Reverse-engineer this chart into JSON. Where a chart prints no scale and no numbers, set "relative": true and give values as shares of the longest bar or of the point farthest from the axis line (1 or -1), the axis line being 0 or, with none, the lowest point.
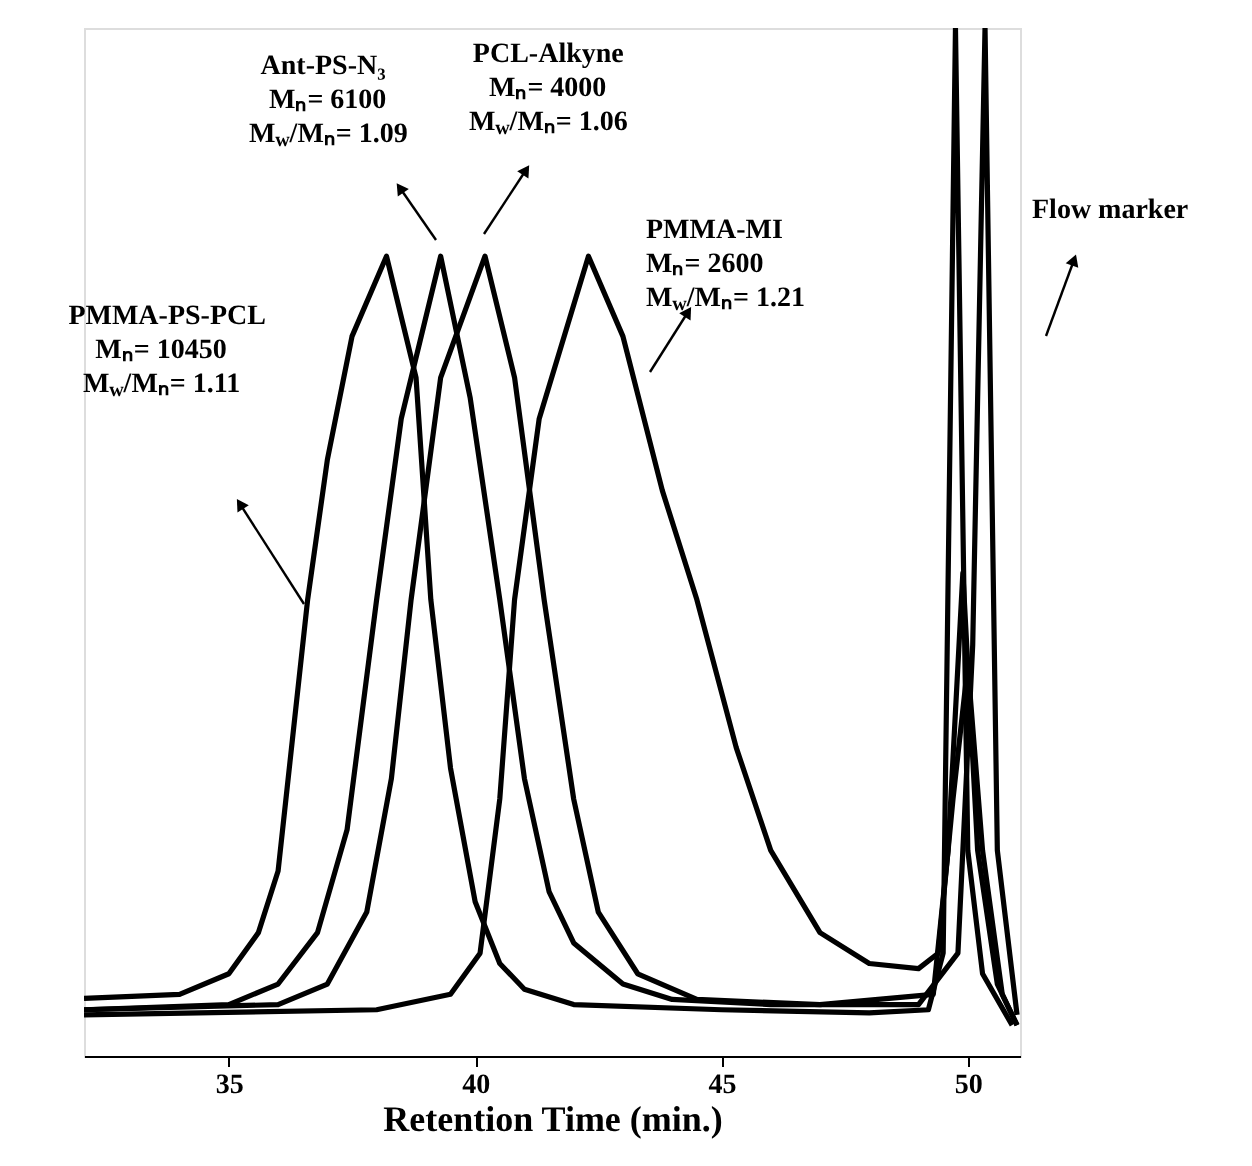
{
  "chart_data": {
    "type": "line",
    "relative": true,
    "xlabel": "Retention Time (min.)",
    "xlim": [
      32.06,
      51.06
    ],
    "xticks": [
      35,
      40,
      45,
      50
    ],
    "grid": false,
    "marker": "none",
    "line_style": "solid",
    "series": [
      {
        "color": "#000000",
        "x": [
          32.06,
          34.0,
          35.0,
          35.6,
          36.0,
          36.6,
          37.0,
          37.5,
          38.2,
          38.8,
          39.1,
          39.5,
          40.0,
          40.5,
          41.0,
          42.0,
          45.0,
          48.0,
          49.2,
          49.5,
          49.75,
          50.0,
          50.3,
          50.9
        ],
        "values": [
          0.056,
          0.06,
          0.08,
          0.12,
          0.18,
          0.444,
          0.58,
          0.7,
          0.778,
          0.66,
          0.444,
          0.28,
          0.15,
          0.09,
          0.065,
          0.05,
          0.045,
          0.042,
          0.045,
          0.1,
          1.0,
          0.2,
          0.08,
          0.03
        ]
      },
      {
        "color": "#000000",
        "x": [
          32.06,
          35.0,
          36.0,
          36.8,
          37.4,
          38.0,
          38.5,
          39.3,
          39.9,
          40.5,
          41.0,
          41.5,
          42.0,
          43.0,
          44.0,
          46.0,
          49.0,
          49.8,
          50.1,
          50.35,
          50.6,
          51.0
        ],
        "values": [
          0.045,
          0.05,
          0.07,
          0.12,
          0.22,
          0.444,
          0.62,
          0.778,
          0.64,
          0.444,
          0.27,
          0.16,
          0.11,
          0.07,
          0.055,
          0.05,
          0.05,
          0.1,
          0.4,
          1.0,
          0.2,
          0.04
        ]
      },
      {
        "color": "#000000",
        "x": [
          32.06,
          36.0,
          37.0,
          37.8,
          38.3,
          38.7,
          39.3,
          40.2,
          40.8,
          41.4,
          42.0,
          42.5,
          43.3,
          44.5,
          47.0,
          49.3,
          49.6,
          49.9,
          50.2,
          50.6,
          51.0
        ],
        "values": [
          0.045,
          0.05,
          0.07,
          0.14,
          0.27,
          0.444,
          0.66,
          0.778,
          0.66,
          0.444,
          0.25,
          0.14,
          0.08,
          0.055,
          0.05,
          0.06,
          0.2,
          0.47,
          0.2,
          0.07,
          0.03
        ]
      },
      {
        "color": "#000000",
        "x": [
          32.06,
          38.0,
          39.5,
          40.1,
          40.5,
          40.8,
          41.3,
          42.3,
          43.0,
          43.8,
          44.5,
          45.3,
          46.0,
          47.0,
          48.0,
          49.0,
          49.4,
          49.7,
          50.0,
          50.3,
          50.7,
          51.0
        ],
        "values": [
          0.04,
          0.045,
          0.06,
          0.1,
          0.25,
          0.444,
          0.62,
          0.778,
          0.7,
          0.55,
          0.444,
          0.3,
          0.2,
          0.12,
          0.09,
          0.085,
          0.1,
          0.25,
          0.38,
          0.2,
          0.06,
          0.03
        ]
      }
    ],
    "annotations": [
      "PMMA-PS-PCL\nMₙ= 10450\nM$_{w}$/Mₙ= 1.11",
      "Ant-PS-N₃\nMₙ= 6100\nM$_{w}$/Mₙ= 1.09",
      "PCL-Alkyne\nMₙ= 4000\nM$_{w}$/Mₙ= 1.06",
      "PMMA-MI\nMₙ= 2600\nM$_{w}$/Mₙ= 1.21",
      "Flow marker"
    ]
  }
}
